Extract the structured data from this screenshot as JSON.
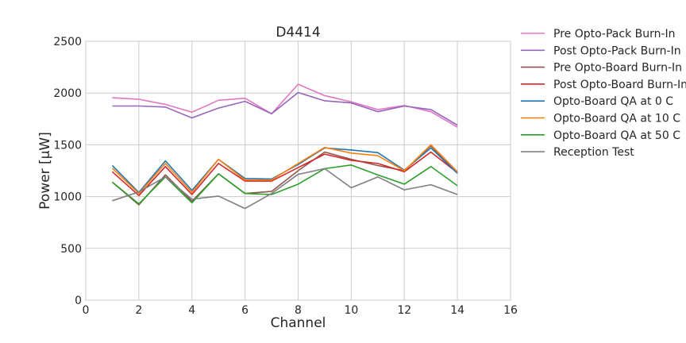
{
  "chart_data": {
    "type": "line",
    "title": "D4414",
    "xlabel": "Channel",
    "ylabel": "Power [μW]",
    "xlim": [
      0,
      16
    ],
    "ylim": [
      0,
      2500
    ],
    "xticks": [
      0,
      2,
      4,
      6,
      8,
      10,
      12,
      14,
      16
    ],
    "yticks": [
      0,
      500,
      1000,
      1500,
      2000,
      2500
    ],
    "grid": true,
    "legend_position": "outside-right",
    "x": [
      1,
      2,
      3,
      4,
      5,
      6,
      7,
      8,
      9,
      10,
      11,
      12,
      13,
      14
    ],
    "series": [
      {
        "name": "Pre Opto-Pack Burn-In",
        "color": "#e377c2",
        "values": [
          1955,
          1940,
          1890,
          1815,
          1930,
          1950,
          1800,
          2085,
          1975,
          1915,
          1840,
          1880,
          1820,
          1670
        ]
      },
      {
        "name": "Post Opto-Pack Burn-In",
        "color": "#9467bd",
        "values": [
          1875,
          1875,
          1865,
          1760,
          1855,
          1920,
          1800,
          2005,
          1925,
          1905,
          1820,
          1875,
          1840,
          1690
        ]
      },
      {
        "name": "Pre Opto-Board Burn-In",
        "color": "#8c564b",
        "values": [
          1140,
          920,
          1210,
          955,
          1220,
          1030,
          1050,
          1250,
          1430,
          1360,
          1300,
          1250,
          1490,
          1230
        ]
      },
      {
        "name": "Post Opto-Board Burn-In",
        "color": "#d62728",
        "values": [
          1240,
          1010,
          1290,
          1020,
          1320,
          1150,
          1150,
          1280,
          1410,
          1350,
          1320,
          1240,
          1430,
          1230
        ]
      },
      {
        "name": "Opto-Board QA at 0 C",
        "color": "#1f77b4",
        "values": [
          1300,
          1040,
          1345,
          1060,
          1360,
          1175,
          1170,
          1310,
          1470,
          1450,
          1425,
          1255,
          1470,
          1225
        ]
      },
      {
        "name": "Opto-Board QA at 10 C",
        "color": "#ff7f0e",
        "values": [
          1275,
          1030,
          1320,
          1040,
          1360,
          1160,
          1160,
          1320,
          1475,
          1420,
          1395,
          1250,
          1500,
          1240
        ]
      },
      {
        "name": "Opto-Board QA at 50 C",
        "color": "#2ca02c",
        "values": [
          1140,
          930,
          1190,
          940,
          1220,
          1030,
          1020,
          1120,
          1270,
          1305,
          1210,
          1120,
          1290,
          1105
        ]
      },
      {
        "name": "Reception Test",
        "color": "#7f7f7f",
        "values": [
          960,
          1045,
          1190,
          975,
          1005,
          885,
          1030,
          1215,
          1270,
          1085,
          1190,
          1065,
          1115,
          1020
        ]
      }
    ]
  }
}
